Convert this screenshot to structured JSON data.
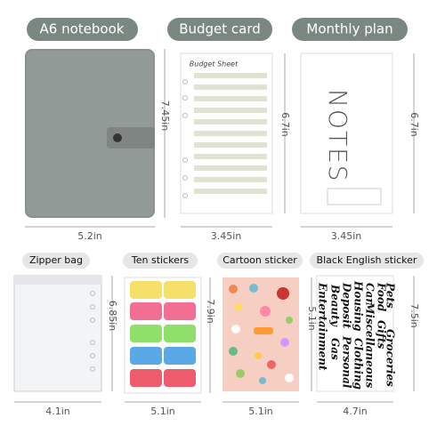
{
  "top_items": [
    {
      "label": "A6 notebook",
      "height": "7.45in",
      "width": "5.2in"
    },
    {
      "label": "Budget card",
      "height": "6.7in",
      "width": "3.45in"
    },
    {
      "label": "Monthly plan",
      "height": "6.7in",
      "width": "3.45in"
    }
  ],
  "bottom_items": [
    {
      "label": "Zipper bag",
      "height": "6.85in",
      "width": "4.1in"
    },
    {
      "label": "Ten stickers",
      "height": "7.9in",
      "width": "5.1in"
    },
    {
      "label": "Cartoon sticker",
      "height": "5.1in",
      "width": "5.1in"
    },
    {
      "label": "Black English sticker",
      "height": "7.5in",
      "width": "4.7in"
    }
  ],
  "budget_card": {
    "title": "Budget Sheet"
  },
  "notes_card": {
    "text": "NOTES"
  },
  "sticker_words": [
    "Housing",
    "Food",
    "Car",
    "Pets",
    "Deposit",
    "Beauty",
    "Gifts",
    "Groceries",
    "Entertainment",
    "Miscellaneous",
    "Clothing",
    "Gas",
    "Personal"
  ]
}
